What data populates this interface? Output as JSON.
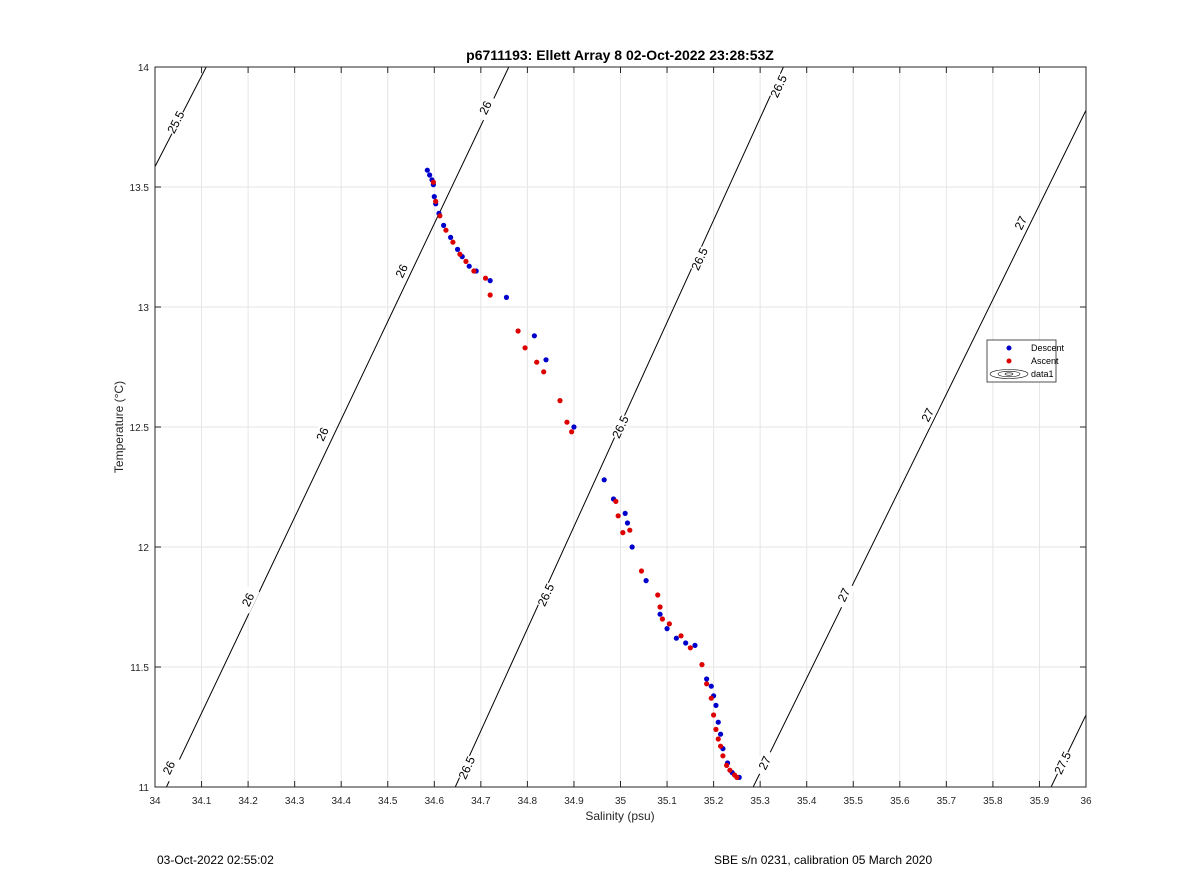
{
  "chart_data": {
    "type": "scatter",
    "title": "p6711193: Ellett Array 8 02-Oct-2022 23:28:53Z",
    "xlabel": "Salinity (psu)",
    "ylabel": "Temperature (°C)",
    "xlim": [
      34,
      36
    ],
    "ylim": [
      11,
      14
    ],
    "x_ticks": [
      "34",
      "34.1",
      "34.2",
      "34.3",
      "34.4",
      "34.5",
      "34.6",
      "34.7",
      "34.8",
      "34.9",
      "35",
      "35.1",
      "35.2",
      "35.3",
      "35.4",
      "35.5",
      "35.6",
      "35.7",
      "35.8",
      "35.9",
      "36"
    ],
    "y_ticks": [
      "11",
      "11.5",
      "12",
      "12.5",
      "13",
      "13.5",
      "14"
    ],
    "grid": true,
    "legend_position": "right",
    "legend": [
      "Descent",
      "Ascent",
      "data1"
    ],
    "colors": {
      "descent": "#0000cc",
      "ascent": "#dd0000",
      "contour": "#000000",
      "grid": "#e6e6e6"
    },
    "series": [
      {
        "name": "Descent",
        "points": [
          [
            34.585,
            13.57
          ],
          [
            34.59,
            13.55
          ],
          [
            34.595,
            13.53
          ],
          [
            34.598,
            13.51
          ],
          [
            34.6,
            13.46
          ],
          [
            34.603,
            13.43
          ],
          [
            34.61,
            13.39
          ],
          [
            34.62,
            13.34
          ],
          [
            34.635,
            13.29
          ],
          [
            34.65,
            13.24
          ],
          [
            34.66,
            13.21
          ],
          [
            34.675,
            13.17
          ],
          [
            34.69,
            13.15
          ],
          [
            34.72,
            13.11
          ],
          [
            34.755,
            13.04
          ],
          [
            34.815,
            12.88
          ],
          [
            34.84,
            12.78
          ],
          [
            34.9,
            12.5
          ],
          [
            34.965,
            12.28
          ],
          [
            34.985,
            12.2
          ],
          [
            35.01,
            12.14
          ],
          [
            35.015,
            12.1
          ],
          [
            35.025,
            12.0
          ],
          [
            35.055,
            11.86
          ],
          [
            35.085,
            11.72
          ],
          [
            35.1,
            11.66
          ],
          [
            35.12,
            11.62
          ],
          [
            35.14,
            11.6
          ],
          [
            35.16,
            11.59
          ],
          [
            35.185,
            11.45
          ],
          [
            35.195,
            11.42
          ],
          [
            35.2,
            11.38
          ],
          [
            35.205,
            11.34
          ],
          [
            35.21,
            11.27
          ],
          [
            35.215,
            11.22
          ],
          [
            35.22,
            11.16
          ],
          [
            35.23,
            11.1
          ],
          [
            35.24,
            11.06
          ],
          [
            35.255,
            11.04
          ]
        ]
      },
      {
        "name": "Ascent",
        "points": [
          [
            34.598,
            13.52
          ],
          [
            34.603,
            13.44
          ],
          [
            34.612,
            13.38
          ],
          [
            34.625,
            13.32
          ],
          [
            34.64,
            13.27
          ],
          [
            34.655,
            13.22
          ],
          [
            34.668,
            13.19
          ],
          [
            34.685,
            13.15
          ],
          [
            34.71,
            13.12
          ],
          [
            34.72,
            13.05
          ],
          [
            34.78,
            12.9
          ],
          [
            34.795,
            12.83
          ],
          [
            34.82,
            12.77
          ],
          [
            34.835,
            12.73
          ],
          [
            34.87,
            12.61
          ],
          [
            34.885,
            12.52
          ],
          [
            34.895,
            12.48
          ],
          [
            34.99,
            12.19
          ],
          [
            34.995,
            12.13
          ],
          [
            35.005,
            12.06
          ],
          [
            35.02,
            12.07
          ],
          [
            35.045,
            11.9
          ],
          [
            35.08,
            11.8
          ],
          [
            35.085,
            11.75
          ],
          [
            35.09,
            11.7
          ],
          [
            35.105,
            11.68
          ],
          [
            35.13,
            11.63
          ],
          [
            35.15,
            11.58
          ],
          [
            35.175,
            11.51
          ],
          [
            35.185,
            11.43
          ],
          [
            35.195,
            11.37
          ],
          [
            35.2,
            11.3
          ],
          [
            35.205,
            11.24
          ],
          [
            35.21,
            11.2
          ],
          [
            35.215,
            11.17
          ],
          [
            35.22,
            11.13
          ],
          [
            35.228,
            11.09
          ],
          [
            35.235,
            11.07
          ],
          [
            35.245,
            11.05
          ],
          [
            35.25,
            11.04
          ]
        ]
      }
    ],
    "contours": [
      {
        "label": "25.5",
        "points": [
          [
            34.0,
            13.585
          ],
          [
            34.11,
            14.0
          ]
        ],
        "labels_at": [
          [
            34.045,
            13.77
          ]
        ]
      },
      {
        "label": "26",
        "points": [
          [
            34.0,
            10.9
          ],
          [
            34.76,
            14.0
          ]
        ],
        "labels_at": [
          [
            34.03,
            11.08
          ],
          [
            34.2,
            11.78
          ],
          [
            34.36,
            12.47
          ],
          [
            34.53,
            13.15
          ],
          [
            34.71,
            13.83
          ]
        ]
      },
      {
        "label": "26.5",
        "points": [
          [
            34.645,
            11.0
          ],
          [
            35.35,
            14.0
          ]
        ],
        "labels_at": [
          [
            34.67,
            11.08
          ],
          [
            34.84,
            11.8
          ],
          [
            35.0,
            12.5
          ],
          [
            35.17,
            13.2
          ],
          [
            35.34,
            13.92
          ]
        ]
      },
      {
        "label": "27",
        "points": [
          [
            35.285,
            11.0
          ],
          [
            36.0,
            13.82
          ]
        ],
        "labels_at": [
          [
            35.31,
            11.1
          ],
          [
            35.48,
            11.8
          ],
          [
            35.66,
            12.55
          ],
          [
            35.86,
            13.35
          ]
        ]
      },
      {
        "label": "27.5",
        "points": [
          [
            35.925,
            11.0
          ],
          [
            36.0,
            11.3
          ]
        ],
        "labels_at": [
          [
            35.95,
            11.1
          ]
        ]
      }
    ]
  },
  "footer": {
    "left": "03-Oct-2022 02:55:02",
    "right": "SBE s/n 0231, calibration 05 March 2020"
  }
}
